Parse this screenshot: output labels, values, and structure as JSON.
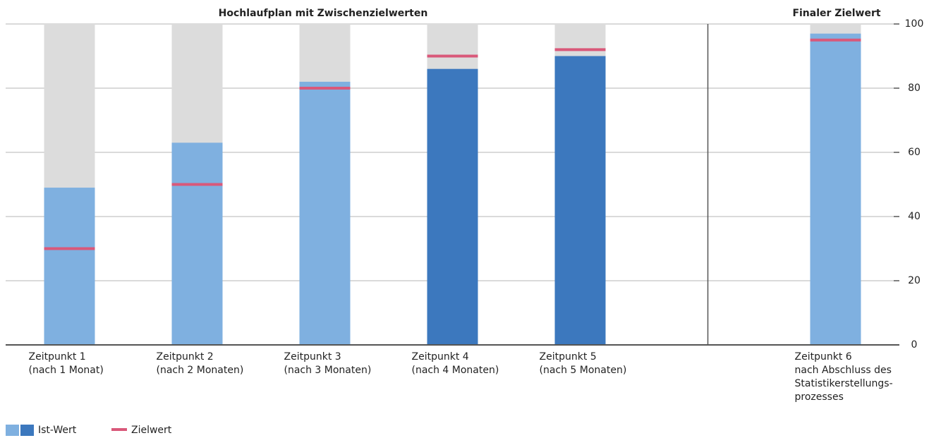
{
  "chart_data": {
    "type": "bar",
    "section_titles": [
      "Hochlaufplan mit Zwischenzielwerten",
      "Finaler Zielwert"
    ],
    "categories": [
      [
        "Zeitpunkt 1",
        "(nach 1 Monat)"
      ],
      [
        "Zeitpunkt 2",
        "(nach 2 Monaten)"
      ],
      [
        "Zeitpunkt 3",
        "(nach 3 Monaten)"
      ],
      [
        "Zeitpunkt 4",
        "(nach 4 Monaten)"
      ],
      [
        "Zeitpunkt 5",
        "(nach 5 Monaten)"
      ],
      [
        "Zeitpunkt 6",
        "nach Abschluss des",
        "Statistikerstellungs-",
        "prozesses"
      ]
    ],
    "series": [
      {
        "name": "Ist-Wert",
        "colors": [
          "#7fb0e0",
          "#7fb0e0",
          "#7fb0e0",
          "#3c78be",
          "#3c78be",
          "#7fb0e0"
        ],
        "values": [
          49,
          63,
          82,
          86,
          90,
          97
        ]
      },
      {
        "name": "Zielwert",
        "color": "#d9587a",
        "values": [
          30,
          50,
          80,
          90,
          92,
          95
        ]
      }
    ],
    "background_color": "#dcdcdc",
    "ylim": [
      0,
      100
    ],
    "yticks": [
      0,
      20,
      40,
      60,
      80,
      100
    ],
    "grid": true,
    "legend": "bottom-left"
  }
}
